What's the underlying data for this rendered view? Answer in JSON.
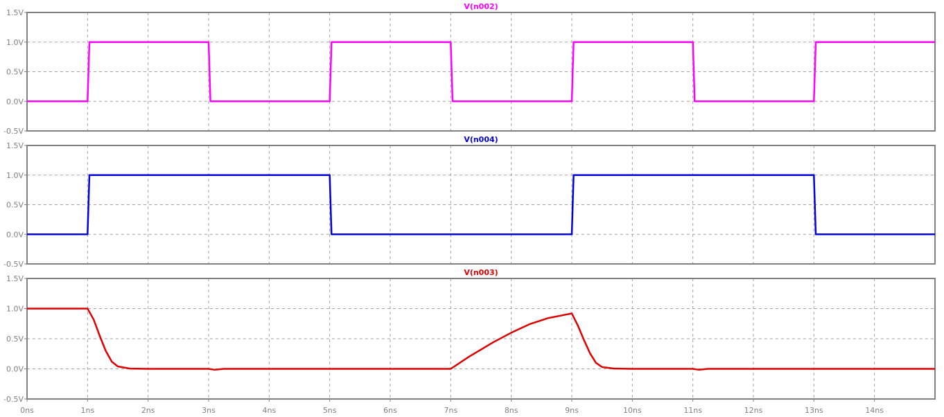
{
  "chart_data": [
    {
      "type": "line",
      "title": "V(n002)",
      "color": "#ff00ff",
      "xlim": [
        0,
        15
      ],
      "ylim": [
        -0.5,
        1.5
      ],
      "yticks": [
        1.5,
        1.0,
        0.5,
        0.0,
        -0.5
      ],
      "ytick_labels": [
        "1.5V",
        "1.0V",
        "0.5V",
        "0.0V",
        "-0.5V"
      ],
      "grid": true,
      "series": [
        {
          "x": [
            0,
            1,
            1.03,
            3,
            3.03,
            5,
            5.03,
            7,
            7.03,
            9,
            9.03,
            11,
            11.03,
            13,
            13.03,
            15
          ],
          "y": [
            0,
            0,
            1,
            1,
            0,
            0,
            1,
            1,
            0,
            0,
            1,
            1,
            0,
            0,
            1,
            1
          ]
        }
      ]
    },
    {
      "type": "line",
      "title": "V(n004)",
      "color": "#0000dd",
      "xlim": [
        0,
        15
      ],
      "ylim": [
        -0.5,
        1.5
      ],
      "yticks": [
        1.5,
        1.0,
        0.5,
        0.0,
        -0.5
      ],
      "ytick_labels": [
        "1.5V",
        "1.0V",
        "0.5V",
        "0.0V",
        "-0.5V"
      ],
      "grid": true,
      "series": [
        {
          "x": [
            0,
            1,
            1.03,
            5,
            5.03,
            9,
            9.03,
            13,
            13.03,
            15
          ],
          "y": [
            0,
            0,
            1,
            1,
            0,
            0,
            1,
            1,
            0,
            0
          ]
        }
      ]
    },
    {
      "type": "line",
      "title": "V(n003)",
      "color": "#dd0000",
      "xlim": [
        0,
        15
      ],
      "ylim": [
        -0.5,
        1.5
      ],
      "yticks": [
        1.5,
        1.0,
        0.5,
        0.0,
        -0.5
      ],
      "ytick_labels": [
        "1.5V",
        "1.0V",
        "0.5V",
        "0.0V",
        "-0.5V"
      ],
      "xticks": [
        0,
        1,
        2,
        3,
        4,
        5,
        6,
        7,
        8,
        9,
        10,
        11,
        12,
        13,
        14
      ],
      "xtick_labels": [
        "0ns",
        "1ns",
        "2ns",
        "3ns",
        "4ns",
        "5ns",
        "6ns",
        "7ns",
        "8ns",
        "9ns",
        "10ns",
        "11ns",
        "12ns",
        "13ns",
        "14ns"
      ],
      "grid": true,
      "series": [
        {
          "x": [
            0,
            1,
            1.1,
            1.2,
            1.3,
            1.4,
            1.5,
            1.7,
            2,
            3,
            3.1,
            3.25,
            5,
            7,
            7.3,
            7.7,
            8,
            8.3,
            8.6,
            8.9,
            9,
            9.1,
            9.2,
            9.3,
            9.4,
            9.5,
            9.7,
            10,
            11,
            11.1,
            11.25,
            13,
            15
          ],
          "y": [
            1,
            1,
            0.82,
            0.55,
            0.3,
            0.12,
            0.04,
            0.005,
            0,
            0,
            -0.015,
            0,
            0,
            0,
            0.2,
            0.44,
            0.6,
            0.74,
            0.84,
            0.9,
            0.92,
            0.72,
            0.48,
            0.26,
            0.1,
            0.03,
            0.005,
            0,
            0,
            -0.015,
            0,
            0,
            0
          ]
        }
      ]
    }
  ]
}
